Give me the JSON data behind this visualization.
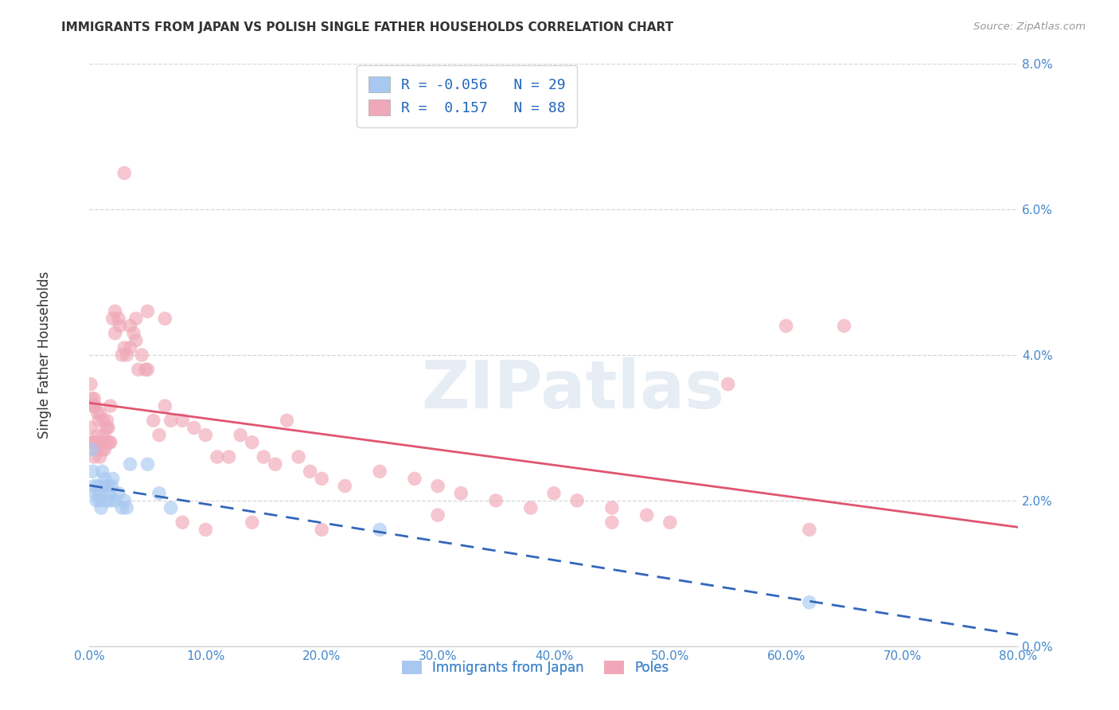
{
  "title": "IMMIGRANTS FROM JAPAN VS POLISH SINGLE FATHER HOUSEHOLDS CORRELATION CHART",
  "source": "Source: ZipAtlas.com",
  "ylabel": "Single Father Households",
  "watermark": "ZIPatlas",
  "xlim": [
    0.0,
    0.8
  ],
  "ylim": [
    0.0,
    0.08
  ],
  "xticks": [
    0.0,
    0.1,
    0.2,
    0.3,
    0.4,
    0.5,
    0.6,
    0.7,
    0.8
  ],
  "yticks": [
    0.0,
    0.02,
    0.04,
    0.06,
    0.08
  ],
  "xtick_labels": [
    "0.0%",
    "10.0%",
    "20.0%",
    "30.0%",
    "40.0%",
    "50.0%",
    "60.0%",
    "70.0%",
    "80.0%"
  ],
  "ytick_labels": [
    "0.0%",
    "2.0%",
    "4.0%",
    "6.0%",
    "8.0%"
  ],
  "japan_color": "#a8c8f0",
  "poles_color": "#f0a8b8",
  "japan_line_color": "#3366bb",
  "poles_line_color": "#e05570",
  "japan_R": -0.056,
  "japan_N": 29,
  "poles_R": 0.157,
  "poles_N": 88,
  "japan_x": [
    0.002,
    0.003,
    0.004,
    0.005,
    0.006,
    0.007,
    0.008,
    0.009,
    0.01,
    0.011,
    0.012,
    0.013,
    0.015,
    0.016,
    0.017,
    0.018,
    0.019,
    0.02,
    0.022,
    0.025,
    0.028,
    0.03,
    0.032,
    0.035,
    0.05,
    0.06,
    0.07,
    0.25,
    0.62
  ],
  "japan_y": [
    0.027,
    0.024,
    0.022,
    0.021,
    0.02,
    0.022,
    0.021,
    0.02,
    0.019,
    0.024,
    0.022,
    0.023,
    0.02,
    0.022,
    0.021,
    0.02,
    0.022,
    0.023,
    0.02,
    0.021,
    0.019,
    0.02,
    0.019,
    0.025,
    0.025,
    0.021,
    0.019,
    0.016,
    0.006
  ],
  "poles_x": [
    0.001,
    0.002,
    0.003,
    0.003,
    0.004,
    0.005,
    0.006,
    0.007,
    0.008,
    0.009,
    0.01,
    0.011,
    0.012,
    0.013,
    0.014,
    0.015,
    0.016,
    0.017,
    0.018,
    0.02,
    0.022,
    0.025,
    0.028,
    0.03,
    0.032,
    0.035,
    0.038,
    0.04,
    0.042,
    0.045,
    0.048,
    0.05,
    0.055,
    0.06,
    0.065,
    0.07,
    0.08,
    0.09,
    0.1,
    0.11,
    0.12,
    0.13,
    0.14,
    0.15,
    0.16,
    0.17,
    0.18,
    0.19,
    0.2,
    0.22,
    0.25,
    0.28,
    0.3,
    0.32,
    0.35,
    0.38,
    0.4,
    0.42,
    0.45,
    0.48,
    0.5,
    0.55,
    0.6,
    0.65,
    0.001,
    0.002,
    0.003,
    0.004,
    0.005,
    0.007,
    0.009,
    0.012,
    0.015,
    0.018,
    0.022,
    0.026,
    0.03,
    0.035,
    0.04,
    0.05,
    0.065,
    0.08,
    0.1,
    0.14,
    0.2,
    0.3,
    0.45,
    0.62
  ],
  "poles_y": [
    0.03,
    0.028,
    0.033,
    0.028,
    0.026,
    0.028,
    0.027,
    0.029,
    0.031,
    0.026,
    0.028,
    0.027,
    0.029,
    0.027,
    0.028,
    0.03,
    0.03,
    0.028,
    0.028,
    0.045,
    0.043,
    0.045,
    0.04,
    0.041,
    0.04,
    0.041,
    0.043,
    0.045,
    0.038,
    0.04,
    0.038,
    0.038,
    0.031,
    0.029,
    0.033,
    0.031,
    0.031,
    0.03,
    0.029,
    0.026,
    0.026,
    0.029,
    0.028,
    0.026,
    0.025,
    0.031,
    0.026,
    0.024,
    0.023,
    0.022,
    0.024,
    0.023,
    0.022,
    0.021,
    0.02,
    0.019,
    0.021,
    0.02,
    0.019,
    0.018,
    0.017,
    0.036,
    0.044,
    0.044,
    0.036,
    0.034,
    0.033,
    0.034,
    0.033,
    0.032,
    0.032,
    0.031,
    0.031,
    0.033,
    0.046,
    0.044,
    0.065,
    0.044,
    0.042,
    0.046,
    0.045,
    0.017,
    0.016,
    0.017,
    0.016,
    0.018,
    0.017,
    0.016
  ],
  "bg_color": "#ffffff",
  "grid_color": "#cccccc",
  "title_color": "#333333",
  "tick_color": "#4488cc",
  "legend_label_color": "#2266bb"
}
